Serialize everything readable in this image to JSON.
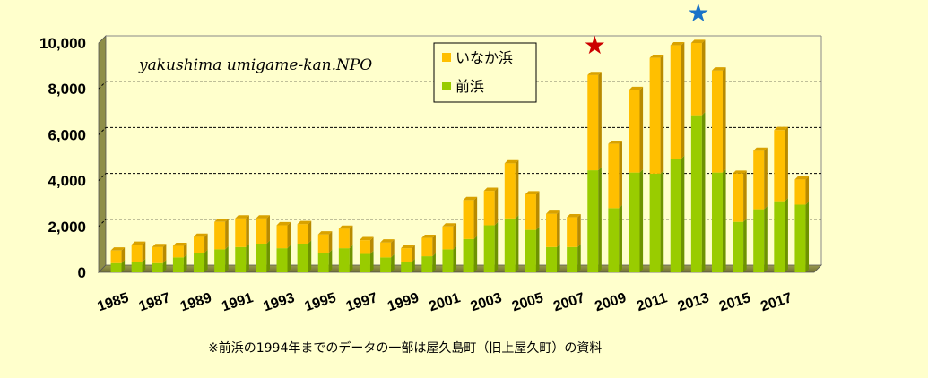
{
  "chart_data": {
    "type": "bar",
    "stacked": true,
    "x": [
      1985,
      1986,
      1987,
      1988,
      1989,
      1990,
      1991,
      1992,
      1993,
      1994,
      1995,
      1996,
      1997,
      1998,
      1999,
      2000,
      2001,
      2002,
      2003,
      2004,
      2005,
      2006,
      2007,
      2008,
      2009,
      2010,
      2011,
      2012,
      2013,
      2014,
      2015,
      2016,
      2017,
      2018
    ],
    "x_tick_labels": [
      "1985",
      "1987",
      "1989",
      "1991",
      "1993",
      "1995",
      "1997",
      "1999",
      "2001",
      "2003",
      "2005",
      "2007",
      "2009",
      "2011",
      "2013",
      "2015",
      "2017"
    ],
    "series": [
      {
        "name": "前浜",
        "color": "#99cc00",
        "values": [
          400,
          450,
          400,
          650,
          850,
          1000,
          1100,
          1250,
          1050,
          1250,
          850,
          1050,
          800,
          650,
          450,
          700,
          1000,
          1450,
          2050,
          2350,
          1850,
          1100,
          1100,
          4450,
          2800,
          4350,
          4300,
          4950,
          6850,
          4350,
          2200,
          2750,
          3100,
          2950
        ]
      },
      {
        "name": "いなか浜",
        "color": "#ffbf00",
        "values": [
          550,
          750,
          700,
          500,
          700,
          1200,
          1250,
          1100,
          1000,
          850,
          800,
          850,
          600,
          650,
          600,
          800,
          1000,
          1700,
          1500,
          2400,
          1550,
          1450,
          1300,
          4150,
          2800,
          3600,
          5050,
          4950,
          3150,
          4450,
          2100,
          2550,
          3100,
          1100
        ]
      }
    ],
    "ylim": [
      0,
      10000
    ],
    "y_ticks": [
      "0",
      "2,000",
      "4,000",
      "6,000",
      "8,000",
      "10,000"
    ],
    "grid": true,
    "markers": [
      {
        "year": 2008,
        "symbol": "★",
        "color": "#cc0000"
      },
      {
        "year": 2013,
        "symbol": "★",
        "color": "#1a73c8"
      }
    ],
    "legend_position": "top-center",
    "annotation": "yakushima umigame-kan.NPO",
    "footnote": "※前浜の1994年までのデータの一部は屋久島町（旧上屋久町）の資料"
  }
}
